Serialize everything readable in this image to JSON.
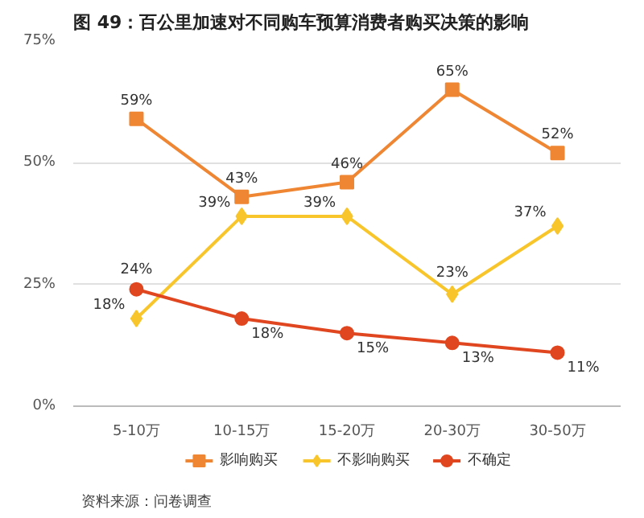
{
  "chart_data": {
    "type": "line",
    "title": "图 49：百公里加速对不同购车预算消费者购买决策的影响",
    "categories": [
      "5-10万",
      "10-15万",
      "15-20万",
      "20-30万",
      "30-50万"
    ],
    "series": [
      {
        "name": "影响购买",
        "color": "#ef8633",
        "values": [
          59,
          43,
          46,
          65,
          52
        ],
        "value_labels": [
          "59%",
          "43%",
          "46%",
          "65%",
          "52%"
        ],
        "marker": "square"
      },
      {
        "name": "不影响购买",
        "color": "#f8c62b",
        "values": [
          18,
          39,
          39,
          23,
          37
        ],
        "value_labels": [
          "18%",
          "39%",
          "39%",
          "23%",
          "37%"
        ],
        "marker": "diamond"
      },
      {
        "name": "不确定",
        "color": "#e0461f",
        "values": [
          24,
          18,
          15,
          13,
          11
        ],
        "value_labels": [
          "24%",
          "18%",
          "15%",
          "13%",
          "11%"
        ],
        "marker": "circle"
      }
    ],
    "ylim": [
      0,
      75
    ],
    "yticks": [
      {
        "value": 0,
        "label": "0%"
      },
      {
        "value": 25,
        "label": "25%"
      },
      {
        "value": 50,
        "label": "50%"
      },
      {
        "value": 75,
        "label": "75%"
      }
    ],
    "grid": "y",
    "legend": "bottom",
    "annotations": [
      "资料来源：问卷调查"
    ]
  }
}
